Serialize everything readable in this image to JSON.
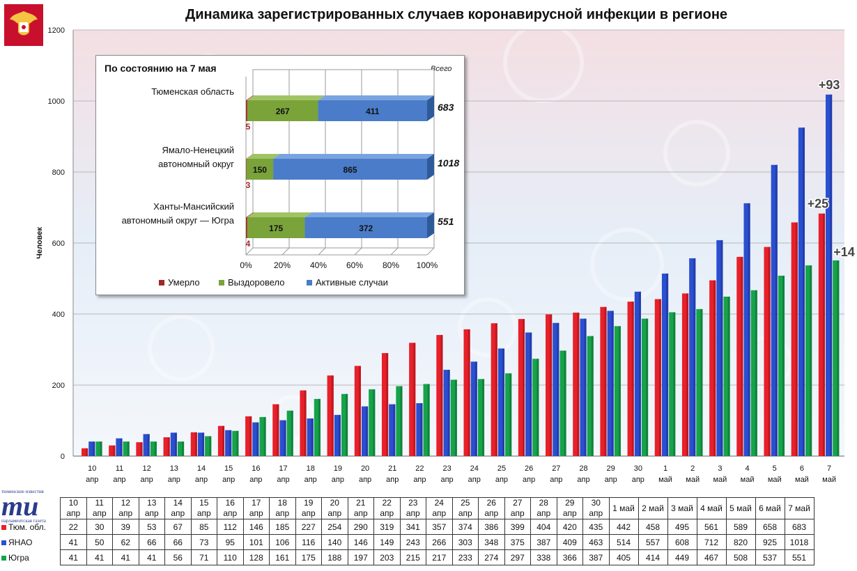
{
  "title": "Динамика зарегистрированных случаев коронавирусной инфекции  в регионе",
  "chart_data": [
    {
      "type": "bar",
      "ylabel": "Человек",
      "ylim": [
        0,
        1200
      ],
      "yticks": [
        0,
        200,
        400,
        600,
        800,
        1000,
        1200
      ],
      "grid": true,
      "categories": [
        "10 апр",
        "11 апр",
        "12 апр",
        "13 апр",
        "14 апр",
        "15 апр",
        "16 апр",
        "17 апр",
        "18 апр",
        "19 апр",
        "20 апр",
        "21 апр",
        "22 апр",
        "23 апр",
        "24 апр",
        "25 апр",
        "26 апр",
        "27 апр",
        "28 апр",
        "29 апр",
        "30 апр",
        "1 май",
        "2 май",
        "3 май",
        "4 май",
        "5 май",
        "6 май",
        "7 май"
      ],
      "categories_top": [
        "10",
        "11",
        "12",
        "13",
        "14",
        "15",
        "16",
        "17",
        "18",
        "19",
        "20",
        "21",
        "22",
        "23",
        "24",
        "25",
        "26",
        "27",
        "28",
        "29",
        "30",
        "1",
        "2",
        "3",
        "4",
        "5",
        "6",
        "7"
      ],
      "categories_bottom": [
        "апр",
        "апр",
        "апр",
        "апр",
        "апр",
        "апр",
        "апр",
        "апр",
        "апр",
        "апр",
        "апр",
        "апр",
        "апр",
        "апр",
        "апр",
        "апр",
        "апр",
        "апр",
        "апр",
        "апр",
        "апр",
        "май",
        "май",
        "май",
        "май",
        "май",
        "май",
        "май"
      ],
      "table_headers": [
        "10 апр",
        "11 апр",
        "12 апр",
        "13 апр",
        "14 апр",
        "15 апр",
        "16 апр",
        "17 апр",
        "18 апр",
        "19 апр",
        "20 апр",
        "21 апр",
        "22 апр",
        "23 апр",
        "24 апр",
        "25 апр",
        "26 апр",
        "27 апр",
        "28 апр",
        "29 апр",
        "30 апр",
        "1 май",
        "2 май",
        "3 май",
        "4 май",
        "5 май",
        "6 май",
        "7 май"
      ],
      "series": [
        {
          "name": "Тюм. обл.",
          "color": "#e8202a",
          "values": [
            22,
            30,
            39,
            53,
            67,
            85,
            112,
            146,
            185,
            227,
            254,
            290,
            319,
            341,
            357,
            374,
            386,
            399,
            404,
            420,
            435,
            442,
            458,
            495,
            561,
            589,
            658,
            683
          ]
        },
        {
          "name": "ЯНАО",
          "color": "#2a4fd0",
          "values": [
            41,
            50,
            62,
            66,
            66,
            73,
            95,
            101,
            106,
            116,
            140,
            146,
            149,
            243,
            266,
            303,
            348,
            375,
            387,
            409,
            463,
            514,
            557,
            608,
            712,
            820,
            925,
            1018
          ]
        },
        {
          "name": "Югра",
          "color": "#16a34a",
          "values": [
            41,
            41,
            41,
            41,
            56,
            71,
            110,
            128,
            161,
            175,
            188,
            197,
            203,
            215,
            217,
            233,
            274,
            297,
            338,
            366,
            387,
            405,
            414,
            449,
            467,
            508,
            537,
            551
          ]
        }
      ],
      "annotations": [
        {
          "text": "+93",
          "series": 1,
          "index": 27
        },
        {
          "text": "+25",
          "series": 0,
          "index": 27
        },
        {
          "text": "+14",
          "series": 2,
          "index": 27
        }
      ]
    },
    {
      "type": "bar",
      "stacked": "percent",
      "orientation": "horizontal",
      "title": "По состоянию на 7 мая",
      "categories": [
        "Тюменская область",
        "Ямало-Ненецкий автономный округ",
        "Ханты-Мансийский автономный округ — Югра"
      ],
      "category_lines": [
        [
          "Тюменская область"
        ],
        [
          "Ямало-Ненецкий",
          "автономный округ"
        ],
        [
          "Ханты-Мансийский",
          "автономный округ — Югра"
        ]
      ],
      "xticks": [
        "0%",
        "20%",
        "40%",
        "60%",
        "80%",
        "100%"
      ],
      "total_header": "Всего",
      "totals": [
        "683",
        "1018",
        "551"
      ],
      "series": [
        {
          "name": "Умерло",
          "color": "#a32828",
          "values": [
            5,
            3,
            4
          ]
        },
        {
          "name": "Выздоровело",
          "color": "#7aa33a",
          "values": [
            267,
            150,
            175
          ]
        },
        {
          "name": "Активные случаи",
          "color": "#4a7cc9",
          "values": [
            411,
            865,
            372
          ]
        }
      ]
    }
  ],
  "logo": {
    "top": "тюменские известия",
    "big": "ти",
    "bottom": "парламентская газета"
  }
}
